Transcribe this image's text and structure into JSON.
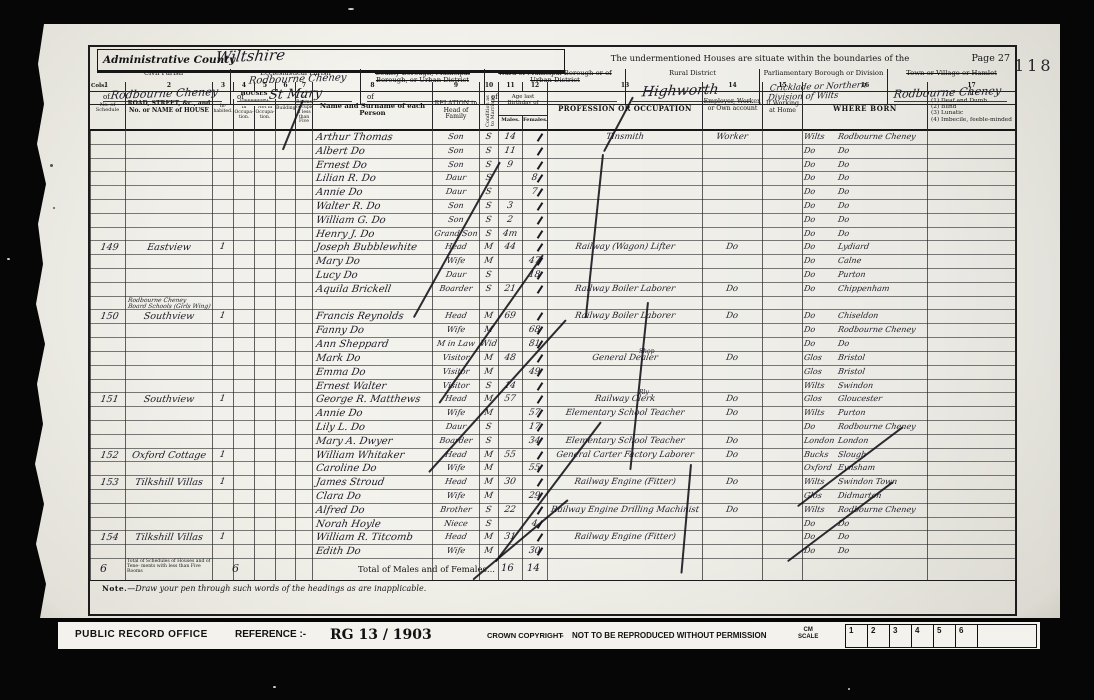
{
  "page": {
    "stamp": "118"
  },
  "header": {
    "admin_label": "Administrative County",
    "admin_value": "Wiltshire",
    "undermentioned": "The undermentioned Houses are situate within the boundaries of the",
    "page_label": "Page 27",
    "civil_parish_label": "Civil Parish",
    "civil_parish_of": "of",
    "civil_parish_value": "Rodbourne Cheney",
    "eccl_label": "Ecclesiastical Parish",
    "eccl_value_top": "Rodbourne Cheney",
    "eccl_of": "of",
    "eccl_value": "St Mary",
    "county_borough_label": "County Borough, Municipal Borough, or Urban District",
    "county_borough_of": "of",
    "ward_label": "Ward of Municipal Borough or of Urban District",
    "ward_of": "of",
    "rural_label": "Rural District",
    "rural_value": "Highworth",
    "parl_label": "Parliamentary Borough or Division",
    "parl_value_1": "Cricklade or Northern",
    "parl_value_2": "Division of Wilts",
    "town_label": "Town or Village or Hamlet",
    "town_value": "Rodbourne Cheney"
  },
  "columns": {
    "cols_label": "Cols.",
    "nums": [
      "1",
      "2",
      "3",
      "4",
      "5",
      "6",
      "7",
      "8",
      "9",
      "10",
      "11",
      "12",
      "13",
      "14",
      "15",
      "16",
      "17"
    ],
    "c1": "No. of Schedule",
    "c2": "ROAD, STREET, &c., and No. or NAME of HOUSE",
    "houses": "HOUSES",
    "c3": "In-habited.",
    "uninhabited": "Uninhabited.",
    "c4": "In Occupa-tion.",
    "c5": "Not in Occupa-tion.",
    "c6": "Building.",
    "c7": "Number of Rooms occupied if less than Five",
    "c8": "Name and Surname of each Person",
    "c9": "RELATION to Head of Family",
    "c10": "Condition as to Marriage",
    "age": "Age last Birthday of",
    "c11": "Males.",
    "c12": "Females.",
    "c13": "PROFESSION OR OCCUPATION",
    "c14": "Employer, Worker, or Own account",
    "c15": "If Working at Home",
    "c16": "WHERE BORN",
    "c17_if": "If",
    "c17_items": [
      "(1) Deaf and Dumb",
      "(2) Blind",
      "(3) Lunatic",
      "(4) Imbecile, feeble-minded"
    ]
  },
  "table": {
    "rows": [
      {
        "nm": "Arthur Thomas",
        "rel": "Son",
        "cn": "S",
        "am": "14",
        "oc": "Tinsmith",
        "em": "Worker",
        "bn1": "Wilts",
        "bn2": "Rodbourne Cheney"
      },
      {
        "nm": "Albert Do",
        "rel": "Son",
        "cn": "S",
        "am": "11",
        "bn1": "Do",
        "bn2": "Do"
      },
      {
        "nm": "Ernest Do",
        "rel": "Son",
        "cn": "S",
        "am": "9",
        "bn1": "Do",
        "bn2": "Do"
      },
      {
        "nm": "Lilian R. Do",
        "rel": "Daur",
        "cn": "S",
        "af": "8",
        "bn1": "Do",
        "bn2": "Do"
      },
      {
        "nm": "Annie Do",
        "rel": "Daur",
        "cn": "S",
        "af": "7",
        "bn1": "Do",
        "bn2": "Do"
      },
      {
        "nm": "Walter R. Do",
        "rel": "Son",
        "cn": "S",
        "am": "3",
        "bn1": "Do",
        "bn2": "Do"
      },
      {
        "nm": "William G. Do",
        "rel": "Son",
        "cn": "S",
        "am": "2",
        "bn1": "Do",
        "bn2": "Do"
      },
      {
        "nm": "Henry J. Do",
        "rel": "Grand Son",
        "cn": "S",
        "am": "4m",
        "bn1": "Do",
        "bn2": "Do"
      },
      {
        "s": "149",
        "rd": "Eastview",
        "inh": "1",
        "nm": "Joseph Bubblewhite",
        "rel": "Head",
        "cn": "M",
        "am": "44",
        "oc": "Railway (Wagon) Lifter",
        "em": "Do",
        "bn1": "Do",
        "bn2": "Lydiard"
      },
      {
        "nm": "Mary Do",
        "rel": "Wife",
        "cn": "M",
        "af": "47",
        "bn1": "Do",
        "bn2": "Calne"
      },
      {
        "nm": "Lucy Do",
        "rel": "Daur",
        "cn": "S",
        "af": "18",
        "bn1": "Do",
        "bn2": "Purton"
      },
      {
        "nm": "Aquila Brickell",
        "rel": "Boarder",
        "cn": "S",
        "am": "21",
        "oc": "Railway Boiler Laborer",
        "em": "Do",
        "bn1": "Do",
        "bn2": "Chippenham"
      },
      {
        "rds": [
          "Rodbourne Cheney",
          "Board Schools (Girls Wing)"
        ]
      },
      {
        "s": "150",
        "rd": "Southview",
        "inh": "1",
        "nm": "Francis Reynolds",
        "rel": "Head",
        "cn": "M",
        "am": "69",
        "oc": "Railway Boiler Laborer",
        "em": "Do",
        "bn1": "Do",
        "bn2": "Chiseldon"
      },
      {
        "nm": "Fanny Do",
        "rel": "Wife",
        "cn": "M",
        "af": "68",
        "bn1": "Do",
        "bn2": "Rodbourne Cheney"
      },
      {
        "nm": "Ann Sheppard",
        "rel": "M in Law",
        "cn": "Wid",
        "af": "81",
        "bn1": "Do",
        "bn2": "Do"
      },
      {
        "nm": "Mark Do",
        "rel": "Visitor",
        "cn": "M",
        "am": "48",
        "sup": "Shop",
        "oc": "General Dealer",
        "em": "Do",
        "bn1": "Glos",
        "bn2": "Bristol"
      },
      {
        "nm": "Emma Do",
        "rel": "Visitor",
        "cn": "M",
        "af": "49",
        "bn1": "Glos",
        "bn2": "Bristol"
      },
      {
        "nm": "Ernest Walter",
        "rel": "Visitor",
        "cn": "S",
        "am": "14",
        "bn1": "Wilts",
        "bn2": "Swindon"
      },
      {
        "s": "151",
        "rd": "Southview",
        "inh": "1",
        "nm": "George R. Matthews",
        "rel": "Head",
        "cn": "M",
        "am": "57",
        "sup": "Rly",
        "oc": "Railway Clerk",
        "em": "Do",
        "bn1": "Glos",
        "bn2": "Gloucester"
      },
      {
        "nm": "Annie Do",
        "rel": "Wife",
        "cn": "M",
        "af": "57",
        "oc": "Elementary School Teacher",
        "em": "Do",
        "bn1": "Wilts",
        "bn2": "Purton"
      },
      {
        "nm": "Lily L. Do",
        "rel": "Daur",
        "cn": "S",
        "af": "17",
        "bn1": "Do",
        "bn2": "Rodbourne Cheney"
      },
      {
        "nm": "Mary A. Dwyer",
        "rel": "Boarder",
        "cn": "S",
        "af": "34",
        "oc": "Elementary School Teacher",
        "em": "Do",
        "bn1": "London",
        "bn2": "London"
      },
      {
        "s": "152",
        "rd": "Oxford Cottage",
        "inh": "1",
        "nm": "William Whitaker",
        "rel": "Head",
        "cn": "M",
        "am": "55",
        "oc": "General Carter Factory Laborer",
        "em": "Do",
        "bn1": "Bucks",
        "bn2": "Slough"
      },
      {
        "nm": "Caroline Do",
        "rel": "Wife",
        "cn": "M",
        "af": "55",
        "bn1": "Oxford",
        "bn2": "Eynsham"
      },
      {
        "s": "153",
        "rd": "Tilkshill Villas",
        "inh": "1",
        "nm": "James Stroud",
        "rel": "Head",
        "cn": "M",
        "am": "30",
        "oc": "Railway Engine (Fitter)",
        "em": "Do",
        "bn1": "Wilts",
        "bn2": "Swindon Town"
      },
      {
        "nm": "Clara Do",
        "rel": "Wife",
        "cn": "M",
        "af": "29",
        "bn1": "Glos",
        "bn2": "Didmarton"
      },
      {
        "nm": "Alfred Do",
        "rel": "Brother",
        "cn": "S",
        "am": "22",
        "oc": "Railway Engine Drilling Machinist",
        "em": "Do",
        "bn1": "Wilts",
        "bn2": "Rodbourne Cheney"
      },
      {
        "nm": "Norah Hoyle",
        "rel": "Niece",
        "cn": "S",
        "af": "4",
        "bn1": "Do",
        "bn2": "Do"
      },
      {
        "s": "154",
        "rd": "Tilkshill Villas",
        "inh": "1",
        "nm": "William R. Titcomb",
        "rel": "Head",
        "cn": "M",
        "am": "31",
        "oc": "Railway Engine (Fitter)",
        "bn1": "Do",
        "bn2": "Do"
      },
      {
        "nm": "Edith Do",
        "rel": "Wife",
        "cn": "M",
        "af": "30",
        "bn1": "Do",
        "bn2": "Do"
      }
    ]
  },
  "totals": {
    "schedules": "6",
    "label": "Total of Schedules of Houses and of Tene- ments with less than Five Rooms",
    "houses": "6",
    "males_females_label": "Total of Males and of Females...",
    "males": "16",
    "females": "14"
  },
  "note_cap": "Note.",
  "note_rest": "—Draw your pen through such words of the headings as are inapplicable.",
  "footer": {
    "office": "PUBLIC RECORD OFFICE",
    "reference_label": "REFERENCE :-",
    "reference": "RG 13 / 1903",
    "copyright": "CROWN COPYRIGHT",
    "dash": "-",
    "notice": "NOT TO BE REPRODUCED WITHOUT PERMISSION",
    "scale_label_1": "CM",
    "scale_label_2": "SCALE",
    "scale_cells": [
      "1",
      "2",
      "3",
      "4",
      "5",
      "6"
    ]
  }
}
